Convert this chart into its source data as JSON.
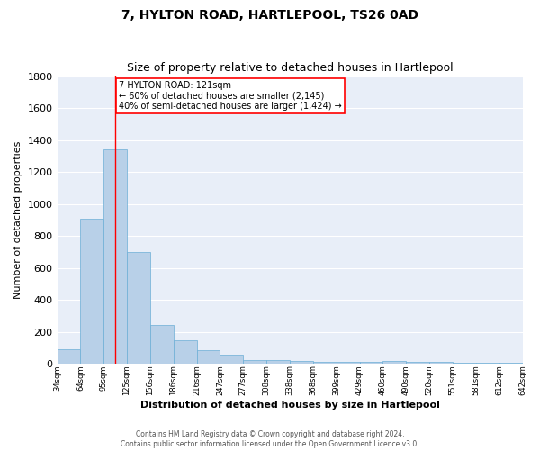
{
  "title": "7, HYLTON ROAD, HARTLEPOOL, TS26 0AD",
  "subtitle": "Size of property relative to detached houses in Hartlepool",
  "xlabel": "Distribution of detached houses by size in Hartlepool",
  "ylabel": "Number of detached properties",
  "bar_values": [
    90,
    905,
    1340,
    700,
    245,
    145,
    85,
    55,
    25,
    22,
    15,
    12,
    10,
    10,
    18,
    10,
    10,
    8,
    5,
    4
  ],
  "categories": [
    "34sqm",
    "64sqm",
    "95sqm",
    "125sqm",
    "156sqm",
    "186sqm",
    "216sqm",
    "247sqm",
    "277sqm",
    "308sqm",
    "338sqm",
    "368sqm",
    "399sqm",
    "429sqm",
    "460sqm",
    "490sqm",
    "520sqm",
    "551sqm",
    "581sqm",
    "612sqm",
    "642sqm"
  ],
  "bar_color": "#b8d0e8",
  "bar_edge_color": "#6baed6",
  "bg_color": "#e8eef8",
  "grid_color": "white",
  "vline_x": 2.5,
  "vline_color": "red",
  "annotation_text": "7 HYLTON ROAD: 121sqm\n← 60% of detached houses are smaller (2,145)\n40% of semi-detached houses are larger (1,424) →",
  "annotation_box_color": "white",
  "annotation_box_edge": "red",
  "ylim": [
    0,
    1800
  ],
  "footnote": "Contains HM Land Registry data © Crown copyright and database right 2024.\nContains public sector information licensed under the Open Government Licence v3.0."
}
